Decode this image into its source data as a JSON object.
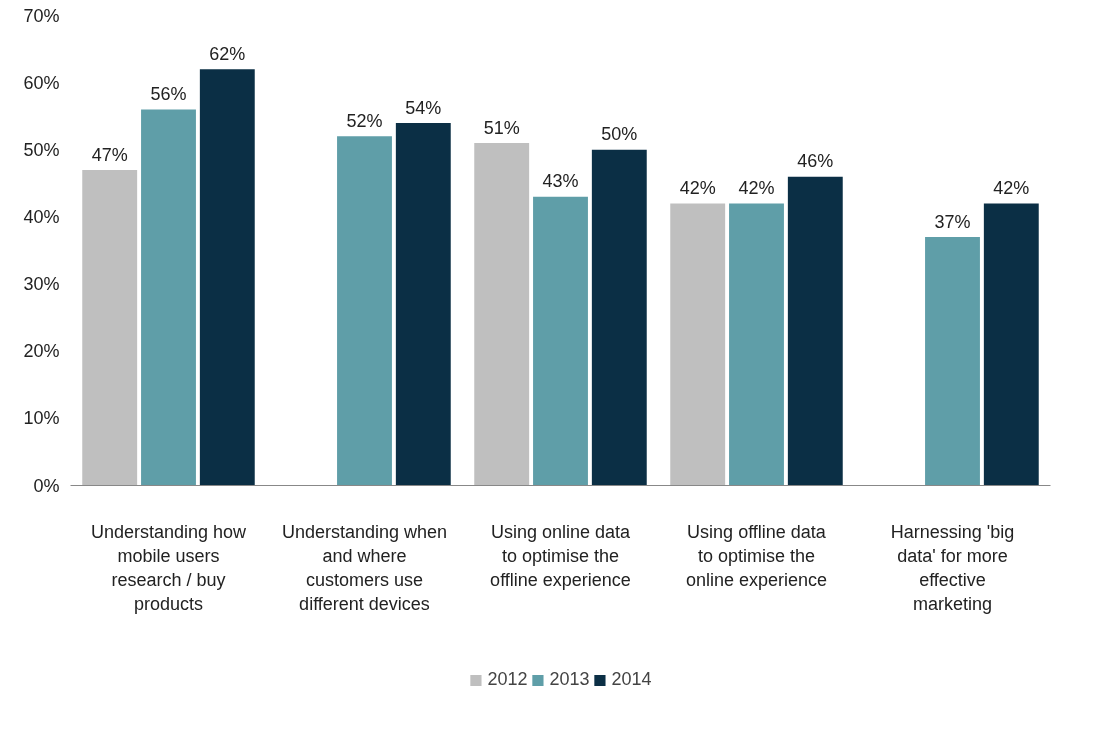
{
  "chart_data": {
    "type": "bar",
    "categories": [
      "Understanding how mobile users research / buy products",
      "Understanding when and where customers use different devices",
      "Using online data to optimise the offline experience",
      "Using offline data to optimise the online experience",
      "Harnessing 'big data' for more effective marketing"
    ],
    "series": [
      {
        "name": "2012",
        "color": "#bfbfbf",
        "values": [
          47,
          null,
          51,
          42,
          null
        ],
        "value_labels": [
          "47%",
          null,
          "51%",
          "42%",
          null
        ]
      },
      {
        "name": "2013",
        "color": "#5f9ea8",
        "values": [
          56,
          52,
          43,
          42,
          37
        ],
        "value_labels": [
          "56%",
          "52%",
          "43%",
          "42%",
          "37%"
        ]
      },
      {
        "name": "2014",
        "color": "#0b2f45",
        "values": [
          62,
          54,
          50,
          46,
          42
        ],
        "value_labels": [
          "62%",
          "54%",
          "50%",
          "46%",
          "42%"
        ]
      }
    ],
    "ylim": [
      0,
      70
    ],
    "yticks": [
      {
        "value": 0,
        "label": "0%"
      },
      {
        "value": 10,
        "label": "10%"
      },
      {
        "value": 20,
        "label": "20%"
      },
      {
        "value": 30,
        "label": "30%"
      },
      {
        "value": 40,
        "label": "40%"
      },
      {
        "value": 50,
        "label": "50%"
      },
      {
        "value": 60,
        "label": "60%"
      },
      {
        "value": 70,
        "label": "70%"
      }
    ],
    "legend": "bottom",
    "grid": false
  }
}
